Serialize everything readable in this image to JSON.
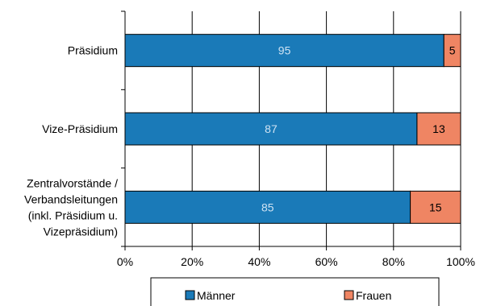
{
  "chart_data": {
    "type": "bar",
    "orientation": "horizontal",
    "stacked": "percent",
    "categories": [
      [
        "Präsidium"
      ],
      [
        "Vize-Präsidium"
      ],
      [
        "Zentralvorstände /",
        "Verbandsleitungen",
        "(inkl. Präsidium u.",
        "Vizepräsidium)"
      ]
    ],
    "series": [
      {
        "name": "Männer",
        "values": [
          95,
          87,
          85
        ],
        "color": "#1a7ab8",
        "label_color": "#cfe3f3"
      },
      {
        "name": "Frauen",
        "values": [
          5,
          13,
          15
        ],
        "color": "#ef8563",
        "label_color": "#000000"
      }
    ],
    "xlim": [
      0,
      100
    ],
    "x_ticks": [
      "0%",
      "20%",
      "40%",
      "60%",
      "80%",
      "100%"
    ],
    "grid": true,
    "legend_position": "bottom",
    "title": "",
    "xlabel": "",
    "ylabel": ""
  }
}
